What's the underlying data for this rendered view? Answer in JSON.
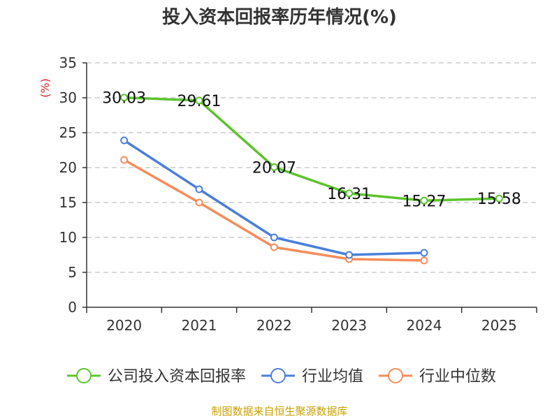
{
  "chart_data": {
    "type": "line",
    "title": "投入资本回报率历年情况(%)",
    "ylabel": "(%)",
    "xlabel": "",
    "categories": [
      "2020",
      "2021",
      "2022",
      "2023",
      "2024",
      "2025"
    ],
    "ylim": [
      0,
      35
    ],
    "yticks": [
      0,
      5,
      10,
      15,
      20,
      25,
      30,
      35
    ],
    "grid": true,
    "legend_position": "bottom",
    "series": [
      {
        "name": "公司投入资本回报率",
        "color": "#5cc42c",
        "values": [
          30.03,
          29.61,
          20.07,
          16.31,
          15.27,
          15.58
        ],
        "labels": [
          "30.03",
          "29.61",
          "20.07",
          "16.31",
          "15.27",
          "15.58"
        ],
        "show_labels": true
      },
      {
        "name": "行业均值",
        "color": "#4a7fdc",
        "values": [
          23.9,
          16.9,
          10.0,
          7.5,
          7.8,
          null
        ],
        "show_labels": false
      },
      {
        "name": "行业中位数",
        "color": "#f78c5a",
        "values": [
          21.1,
          15.0,
          8.6,
          6.9,
          6.7,
          null
        ],
        "show_labels": false
      }
    ]
  },
  "footer": {
    "source": "制图数据来自恒生聚源数据库"
  },
  "colors": {
    "axis": "#333333",
    "grid": "#cccccc",
    "ylabel": "#e02020",
    "source": "#c8a000"
  }
}
